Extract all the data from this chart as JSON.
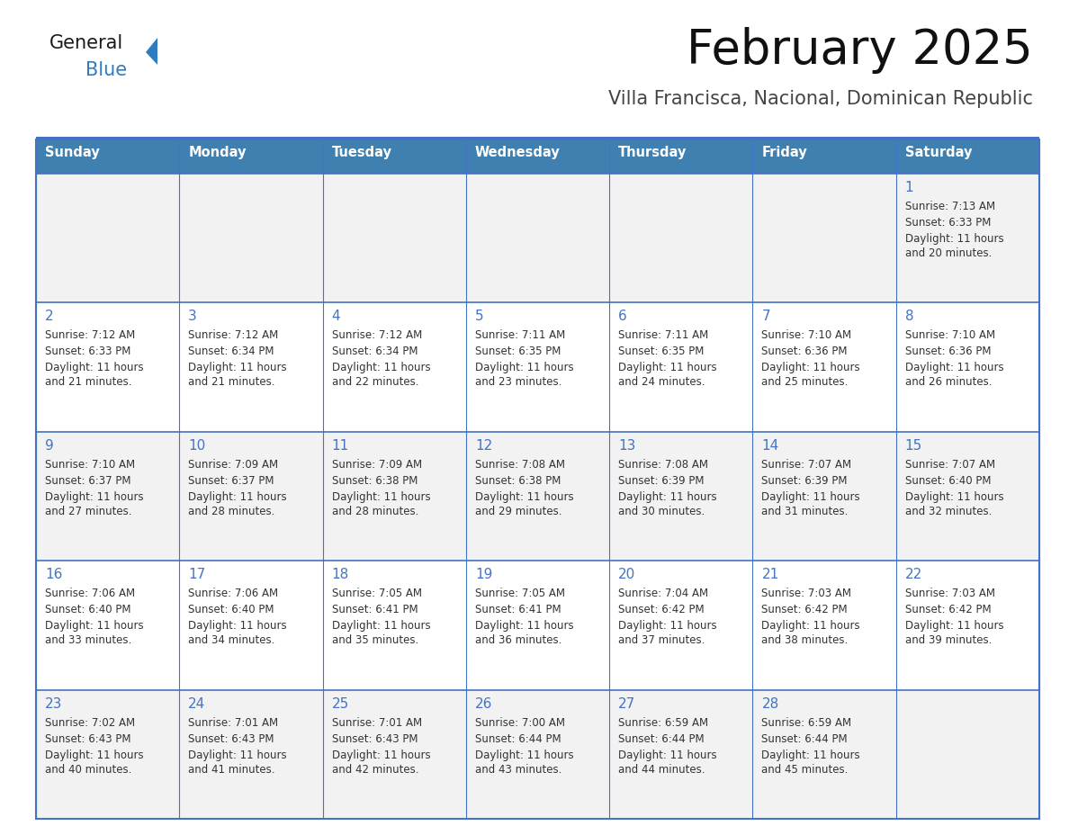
{
  "title": "February 2025",
  "subtitle": "Villa Francisca, Nacional, Dominican Republic",
  "days_of_week": [
    "Sunday",
    "Monday",
    "Tuesday",
    "Wednesday",
    "Thursday",
    "Friday",
    "Saturday"
  ],
  "header_bg": "#4080B0",
  "header_text": "#FFFFFF",
  "odd_row_bg": "#F2F2F2",
  "even_row_bg": "#FFFFFF",
  "cell_text_color": "#333333",
  "day_num_color": "#4472C4",
  "border_color": "#4472C4",
  "logo_general_color": "#1A1A1A",
  "logo_blue_color": "#2E7DC0",
  "calendar_data": [
    [
      {
        "day": null,
        "sunrise": null,
        "sunset": null,
        "daylight": null
      },
      {
        "day": null,
        "sunrise": null,
        "sunset": null,
        "daylight": null
      },
      {
        "day": null,
        "sunrise": null,
        "sunset": null,
        "daylight": null
      },
      {
        "day": null,
        "sunrise": null,
        "sunset": null,
        "daylight": null
      },
      {
        "day": null,
        "sunrise": null,
        "sunset": null,
        "daylight": null
      },
      {
        "day": null,
        "sunrise": null,
        "sunset": null,
        "daylight": null
      },
      {
        "day": 1,
        "sunrise": "7:13 AM",
        "sunset": "6:33 PM",
        "daylight": "11 hours\nand 20 minutes."
      }
    ],
    [
      {
        "day": 2,
        "sunrise": "7:12 AM",
        "sunset": "6:33 PM",
        "daylight": "11 hours\nand 21 minutes."
      },
      {
        "day": 3,
        "sunrise": "7:12 AM",
        "sunset": "6:34 PM",
        "daylight": "11 hours\nand 21 minutes."
      },
      {
        "day": 4,
        "sunrise": "7:12 AM",
        "sunset": "6:34 PM",
        "daylight": "11 hours\nand 22 minutes."
      },
      {
        "day": 5,
        "sunrise": "7:11 AM",
        "sunset": "6:35 PM",
        "daylight": "11 hours\nand 23 minutes."
      },
      {
        "day": 6,
        "sunrise": "7:11 AM",
        "sunset": "6:35 PM",
        "daylight": "11 hours\nand 24 minutes."
      },
      {
        "day": 7,
        "sunrise": "7:10 AM",
        "sunset": "6:36 PM",
        "daylight": "11 hours\nand 25 minutes."
      },
      {
        "day": 8,
        "sunrise": "7:10 AM",
        "sunset": "6:36 PM",
        "daylight": "11 hours\nand 26 minutes."
      }
    ],
    [
      {
        "day": 9,
        "sunrise": "7:10 AM",
        "sunset": "6:37 PM",
        "daylight": "11 hours\nand 27 minutes."
      },
      {
        "day": 10,
        "sunrise": "7:09 AM",
        "sunset": "6:37 PM",
        "daylight": "11 hours\nand 28 minutes."
      },
      {
        "day": 11,
        "sunrise": "7:09 AM",
        "sunset": "6:38 PM",
        "daylight": "11 hours\nand 28 minutes."
      },
      {
        "day": 12,
        "sunrise": "7:08 AM",
        "sunset": "6:38 PM",
        "daylight": "11 hours\nand 29 minutes."
      },
      {
        "day": 13,
        "sunrise": "7:08 AM",
        "sunset": "6:39 PM",
        "daylight": "11 hours\nand 30 minutes."
      },
      {
        "day": 14,
        "sunrise": "7:07 AM",
        "sunset": "6:39 PM",
        "daylight": "11 hours\nand 31 minutes."
      },
      {
        "day": 15,
        "sunrise": "7:07 AM",
        "sunset": "6:40 PM",
        "daylight": "11 hours\nand 32 minutes."
      }
    ],
    [
      {
        "day": 16,
        "sunrise": "7:06 AM",
        "sunset": "6:40 PM",
        "daylight": "11 hours\nand 33 minutes."
      },
      {
        "day": 17,
        "sunrise": "7:06 AM",
        "sunset": "6:40 PM",
        "daylight": "11 hours\nand 34 minutes."
      },
      {
        "day": 18,
        "sunrise": "7:05 AM",
        "sunset": "6:41 PM",
        "daylight": "11 hours\nand 35 minutes."
      },
      {
        "day": 19,
        "sunrise": "7:05 AM",
        "sunset": "6:41 PM",
        "daylight": "11 hours\nand 36 minutes."
      },
      {
        "day": 20,
        "sunrise": "7:04 AM",
        "sunset": "6:42 PM",
        "daylight": "11 hours\nand 37 minutes."
      },
      {
        "day": 21,
        "sunrise": "7:03 AM",
        "sunset": "6:42 PM",
        "daylight": "11 hours\nand 38 minutes."
      },
      {
        "day": 22,
        "sunrise": "7:03 AM",
        "sunset": "6:42 PM",
        "daylight": "11 hours\nand 39 minutes."
      }
    ],
    [
      {
        "day": 23,
        "sunrise": "7:02 AM",
        "sunset": "6:43 PM",
        "daylight": "11 hours\nand 40 minutes."
      },
      {
        "day": 24,
        "sunrise": "7:01 AM",
        "sunset": "6:43 PM",
        "daylight": "11 hours\nand 41 minutes."
      },
      {
        "day": 25,
        "sunrise": "7:01 AM",
        "sunset": "6:43 PM",
        "daylight": "11 hours\nand 42 minutes."
      },
      {
        "day": 26,
        "sunrise": "7:00 AM",
        "sunset": "6:44 PM",
        "daylight": "11 hours\nand 43 minutes."
      },
      {
        "day": 27,
        "sunrise": "6:59 AM",
        "sunset": "6:44 PM",
        "daylight": "11 hours\nand 44 minutes."
      },
      {
        "day": 28,
        "sunrise": "6:59 AM",
        "sunset": "6:44 PM",
        "daylight": "11 hours\nand 45 minutes."
      },
      {
        "day": null,
        "sunrise": null,
        "sunset": null,
        "daylight": null
      }
    ]
  ]
}
